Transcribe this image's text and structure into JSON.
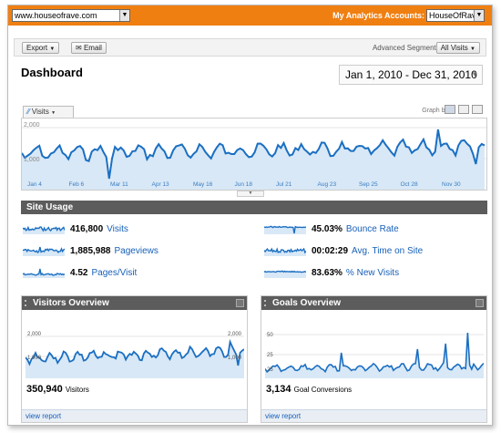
{
  "topbar": {
    "site_select": "www.houseofrave.com",
    "accounts_label": "My Analytics Accounts:",
    "account_select": "HouseOfRave"
  },
  "toolbar": {
    "export_label": "Export",
    "email_label": "Email",
    "advanced_segments_label": "Advanced Segments:",
    "segment_select": "All Visits"
  },
  "dashboard": {
    "title": "Dashboard",
    "date_range": "Jan 1, 2010 - Dec 31, 2010"
  },
  "main_chart": {
    "metric_tab": "Visits",
    "graph_by_label": "Graph by:",
    "y_top": "2,000",
    "y_mid": "1,000",
    "x_labels": [
      "Jan 4",
      "Feb 6",
      "Mar 11",
      "Apr 13",
      "May 16",
      "Jun 18",
      "Jul 21",
      "Aug 23",
      "Sep 25",
      "Oct 28",
      "Nov 30"
    ]
  },
  "site_usage": {
    "title": "Site Usage",
    "metrics": [
      {
        "value": "416,800",
        "label": "Visits"
      },
      {
        "value": "1,885,988",
        "label": "Pageviews"
      },
      {
        "value": "4.52",
        "label": "Pages/Visit"
      },
      {
        "value": "45.03%",
        "label": "Bounce Rate"
      },
      {
        "value": "00:02:29",
        "label": "Avg. Time on Site"
      },
      {
        "value": "83.63%",
        "label": "% New Visits"
      }
    ]
  },
  "visitors_overview": {
    "title": "Visitors Overview",
    "y_left_top": "2,000",
    "y_left_mid": "1,000",
    "y_right_top": "2,000",
    "y_right_mid": "1,000",
    "value": "350,940",
    "value_label": "Visitors",
    "link": "view report"
  },
  "goals_overview": {
    "title": "Goals Overview",
    "y_top": "50",
    "y_mid": "25",
    "y_low": "25",
    "value": "3,134",
    "value_label": "Goal Conversions",
    "link": "view report"
  },
  "colors": {
    "topbar": "#f07f12",
    "series": "#1b6fc2",
    "section_header": "#5c5c5c",
    "link": "#1660b8"
  }
}
